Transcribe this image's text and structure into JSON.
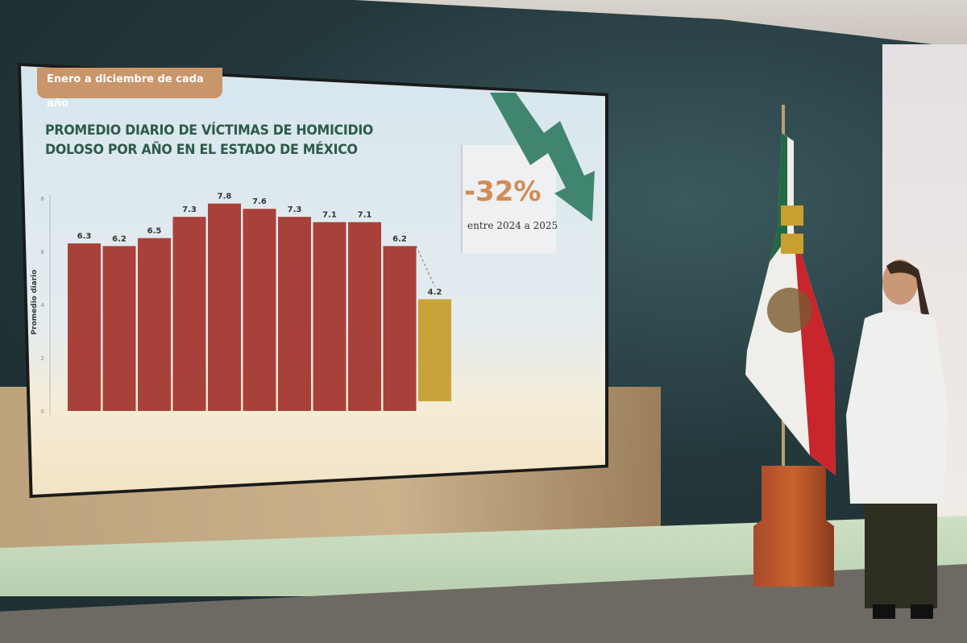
{
  "slide": {
    "badge": "Enero a diciembre de cada año",
    "title_line1": "PROMEDIO DIARIO DE VÍCTIMAS DE HOMICIDIO",
    "title_line2": "DOLOSO POR AÑO EN EL ESTADO DE MÉXICO",
    "callout_value": "-32%",
    "callout_text": "entre 2024 a 2025"
  },
  "colors": {
    "bar": "#a8413a",
    "highlight_bar": "#c9a33a",
    "title": "#2d5a4a",
    "callout": "#d18b55",
    "arrow": "#2f7a62"
  },
  "chart_data": {
    "type": "bar",
    "title": "PROMEDIO DIARIO DE VÍCTIMAS DE HOMICIDIO DOLOSO POR AÑO EN EL ESTADO DE MÉXICO",
    "ylabel": "Promedio diario",
    "ylim": [
      0,
      8
    ],
    "yticks": [
      "0",
      "2",
      "4",
      "6",
      "8"
    ],
    "values": [
      6.3,
      6.2,
      6.5,
      7.3,
      7.8,
      7.6,
      7.3,
      7.1,
      7.1,
      6.2,
      4.2
    ],
    "data_labels": [
      "6.3",
      "6.2",
      "6.5",
      "7.3",
      "7.8",
      "7.6",
      "7.3",
      "7.1",
      "7.1",
      "6.2",
      "4.2"
    ],
    "highlight_index": 10,
    "grid": false
  }
}
